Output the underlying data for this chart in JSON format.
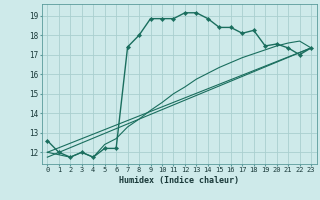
{
  "xlabel": "Humidex (Indice chaleur)",
  "bg_color": "#ceeaea",
  "grid_color": "#aacfcf",
  "line_color": "#1a6e5e",
  "xlim": [
    -0.5,
    23.5
  ],
  "ylim": [
    11.4,
    19.6
  ],
  "xticks": [
    0,
    1,
    2,
    3,
    4,
    5,
    6,
    7,
    8,
    9,
    10,
    11,
    12,
    13,
    14,
    15,
    16,
    17,
    18,
    19,
    20,
    21,
    22,
    23
  ],
  "yticks": [
    12,
    13,
    14,
    15,
    16,
    17,
    18,
    19
  ],
  "line1_x": [
    0,
    1,
    2,
    3,
    4,
    5,
    6,
    7,
    8,
    9,
    10,
    11,
    12,
    13,
    14,
    15,
    16,
    17,
    18,
    19,
    20,
    21,
    22,
    23
  ],
  "line1_y": [
    12.6,
    12.0,
    11.75,
    12.0,
    11.75,
    12.2,
    12.2,
    17.4,
    18.0,
    18.85,
    18.85,
    18.85,
    19.15,
    19.15,
    18.85,
    18.4,
    18.4,
    18.1,
    18.25,
    17.45,
    17.55,
    17.35,
    17.0,
    17.35
  ],
  "line2_x": [
    0,
    2,
    3,
    4,
    5,
    6,
    7,
    8,
    9,
    10,
    11,
    12,
    13,
    14,
    15,
    16,
    17,
    18,
    19,
    20,
    21,
    22,
    23
  ],
  "line2_y": [
    12.0,
    11.75,
    12.0,
    11.75,
    12.4,
    12.7,
    13.3,
    13.7,
    14.15,
    14.55,
    15.0,
    15.35,
    15.75,
    16.05,
    16.35,
    16.6,
    16.85,
    17.05,
    17.25,
    17.45,
    17.6,
    17.7,
    17.35
  ],
  "line3_x": [
    0,
    23
  ],
  "line3_y": [
    12.0,
    17.35
  ],
  "line4_x": [
    0,
    23
  ],
  "line4_y": [
    11.75,
    17.35
  ]
}
